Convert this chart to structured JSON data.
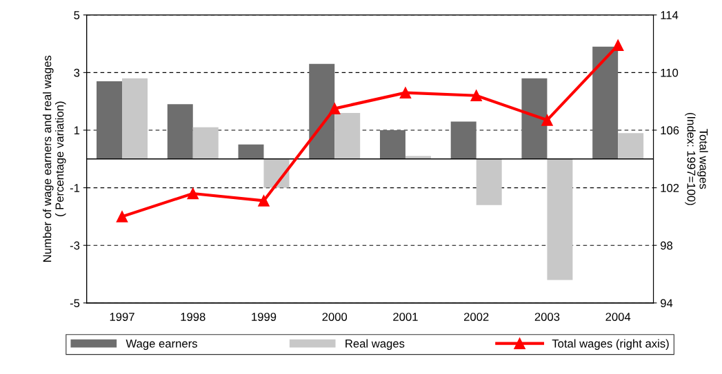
{
  "chart_data": {
    "type": "bar",
    "categories": [
      "1997",
      "1998",
      "1999",
      "2000",
      "2001",
      "2002",
      "2003",
      "2004"
    ],
    "ylabel": "Number of wage earners and real wages\n( Percentage variation)",
    "y2label": "Total wages\n(Index: 1997=100)",
    "series": [
      {
        "name": "Wage earners",
        "color": "#6e6e6e",
        "values": [
          2.7,
          1.9,
          0.5,
          3.3,
          1.0,
          1.3,
          2.8,
          3.9
        ]
      },
      {
        "name": "Real wages",
        "color": "#c8c8c8",
        "values": [
          2.8,
          1.1,
          -1.0,
          1.6,
          0.1,
          -1.6,
          -4.2,
          0.9
        ]
      },
      {
        "name": "Total wages (right axis)",
        "type": "line",
        "axis": "y2",
        "color": "#ff0000",
        "marker": "triangle",
        "line_style": "solid",
        "values": [
          100.0,
          101.6,
          101.1,
          107.5,
          108.6,
          108.4,
          106.7,
          111.9
        ]
      }
    ],
    "ylim": [
      -5,
      5
    ],
    "yticks": [
      -5,
      -3,
      -1,
      1,
      3,
      5
    ],
    "y2lim": [
      94,
      114
    ],
    "y2ticks": [
      94,
      98,
      102,
      106,
      110,
      114
    ],
    "ref_lines": [
      {
        "axis": "y",
        "value": 0,
        "color": "#000000",
        "line_style": "solid"
      }
    ],
    "grid": "y",
    "legend": "bottom"
  }
}
